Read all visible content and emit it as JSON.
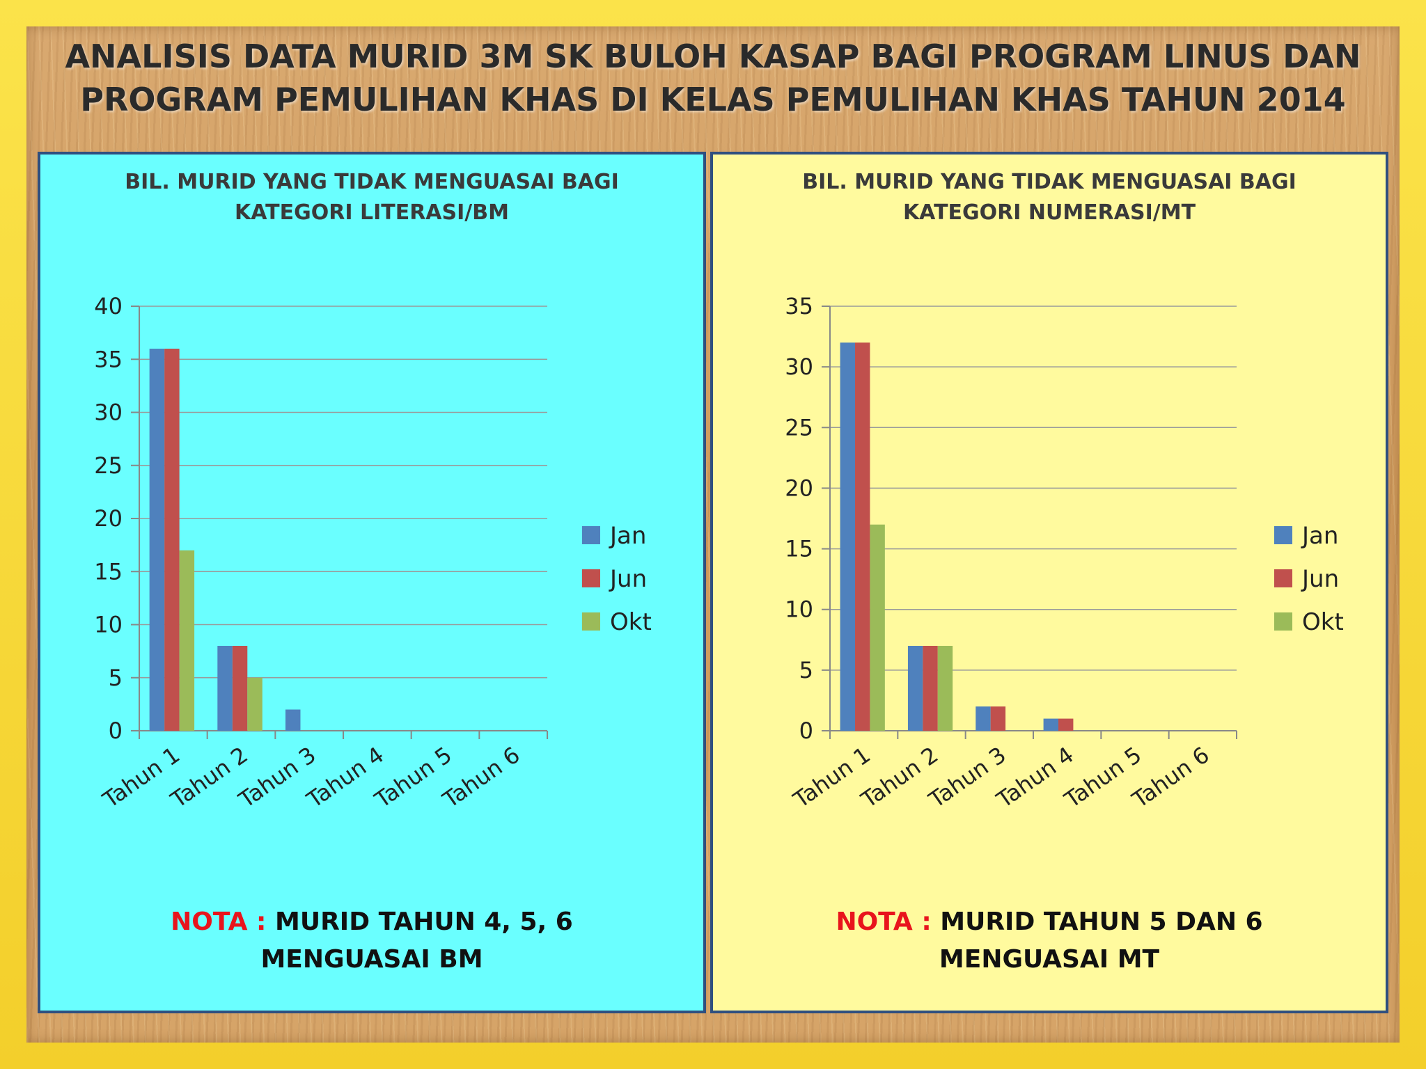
{
  "page": {
    "title": "ANALISIS DATA MURID 3M SK BULOH KASAP BAGI PROGRAM LINUS DAN\nPROGRAM PEMULIHAN KHAS DI KELAS PEMULIHAN KHAS TAHUN 2014"
  },
  "colors": {
    "jan": "#4f81bd",
    "jun": "#c0504d",
    "okt": "#9bbb59",
    "panel_left": "#6affff",
    "panel_right": "#fffa9e"
  },
  "notes": {
    "left": {
      "label": "NOTA :",
      "line1": "MURID TAHUN 4, 5, 6",
      "line2": "MENGUASAI BM"
    },
    "right": {
      "label": "NOTA :",
      "line1": "MURID TAHUN 5 DAN 6",
      "line2": "MENGUASAI MT"
    }
  },
  "chart_data": [
    {
      "type": "bar",
      "title": "BIL. MURID YANG TIDAK MENGUASAI BAGI\nKATEGORI LITERASI/BM",
      "categories": [
        "Tahun 1",
        "Tahun 2",
        "Tahun 3",
        "Tahun 4",
        "Tahun 5",
        "Tahun 6"
      ],
      "series": [
        {
          "name": "Jan",
          "values": [
            36,
            8,
            2,
            0,
            0,
            0
          ]
        },
        {
          "name": "Jun",
          "values": [
            36,
            8,
            0,
            0,
            0,
            0
          ]
        },
        {
          "name": "Okt",
          "values": [
            17,
            5,
            0,
            0,
            0,
            0
          ]
        }
      ],
      "ylim": [
        0,
        40
      ],
      "yticks": [
        0,
        5,
        10,
        15,
        20,
        25,
        30,
        35,
        40
      ],
      "grid": true,
      "legend": "right"
    },
    {
      "type": "bar",
      "title": "BIL. MURID YANG TIDAK MENGUASAI BAGI\nKATEGORI NUMERASI/MT",
      "categories": [
        "Tahun 1",
        "Tahun 2",
        "Tahun 3",
        "Tahun 4",
        "Tahun 5",
        "Tahun 6"
      ],
      "series": [
        {
          "name": "Jan",
          "values": [
            32,
            7,
            2,
            1,
            0,
            0
          ]
        },
        {
          "name": "Jun",
          "values": [
            32,
            7,
            2,
            1,
            0,
            0
          ]
        },
        {
          "name": "Okt",
          "values": [
            17,
            7,
            0,
            0,
            0,
            0
          ]
        }
      ],
      "ylim": [
        0,
        35
      ],
      "yticks": [
        0,
        5,
        10,
        15,
        20,
        25,
        30,
        35
      ],
      "grid": true,
      "legend": "right"
    }
  ]
}
